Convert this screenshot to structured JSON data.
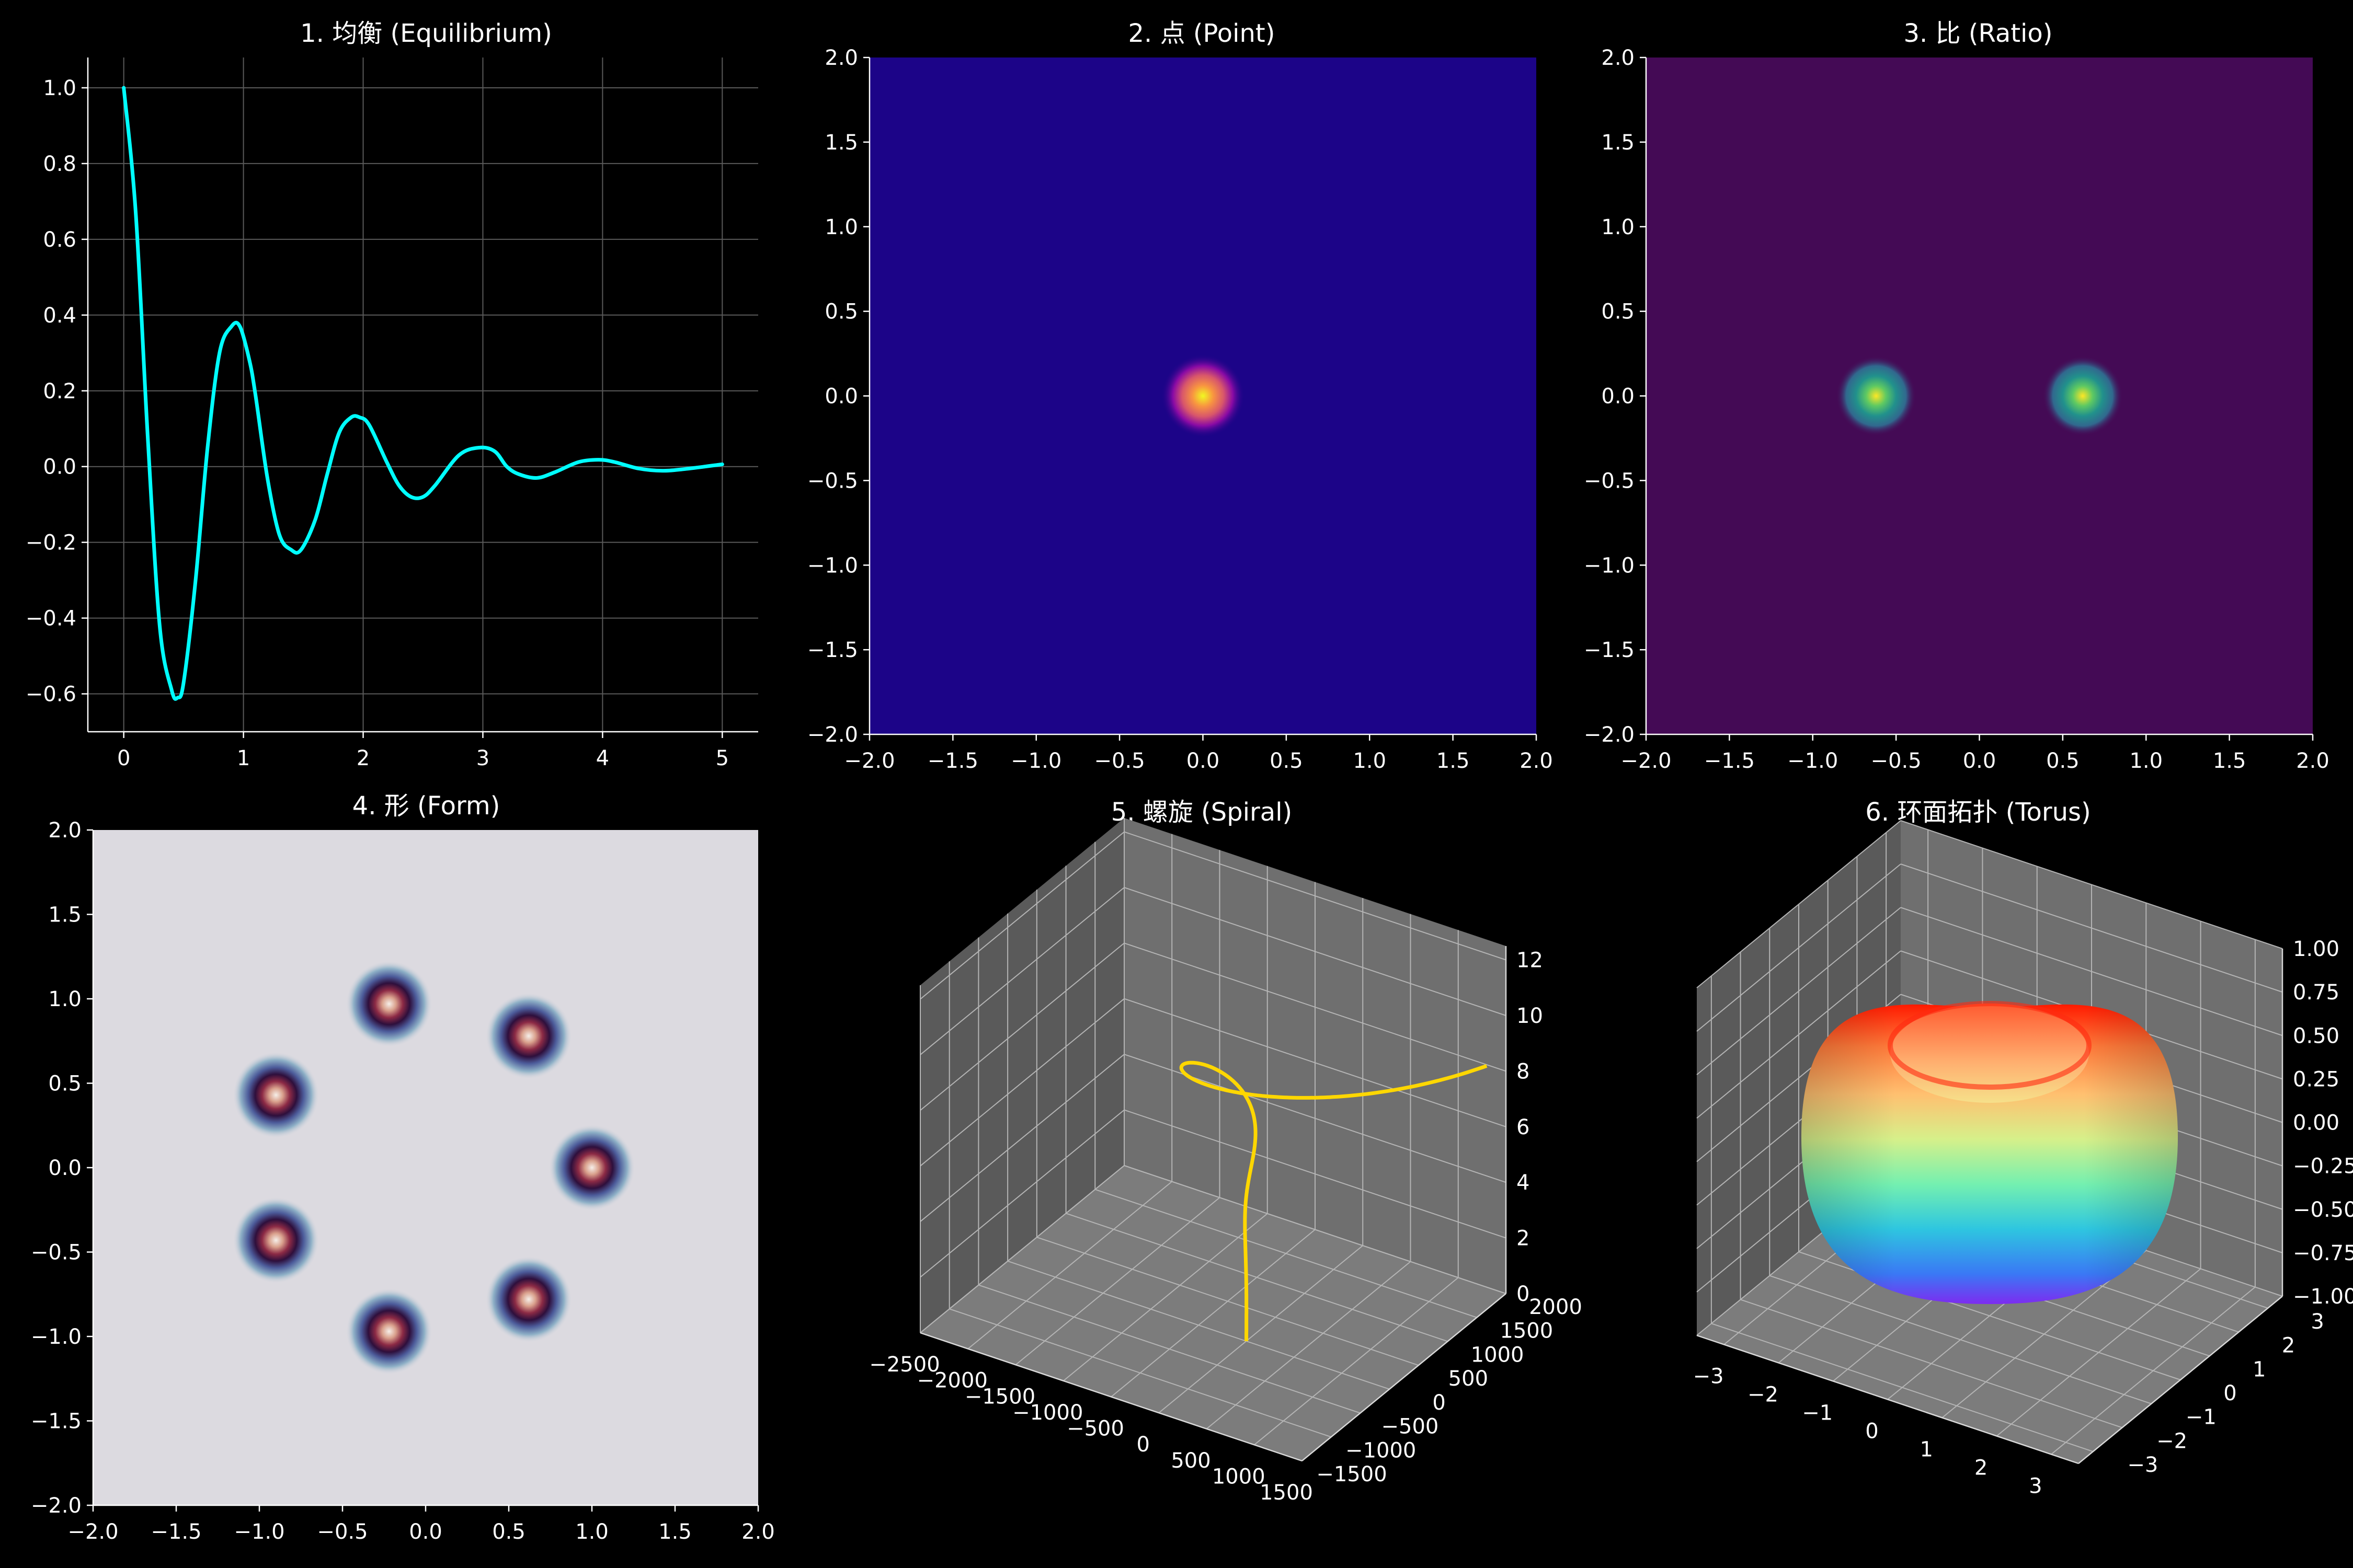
{
  "figure": {
    "background": "#000000"
  },
  "chart_data": [
    {
      "type": "line",
      "title": "1. 均衡 (Equilibrium)",
      "xlim": [
        -0.3,
        5.3
      ],
      "ylim": [
        -0.7,
        1.08
      ],
      "xticks": [
        "0",
        "1",
        "2",
        "3",
        "4",
        "5"
      ],
      "yticks": [
        "−0.6",
        "−0.4",
        "−0.2",
        "0.0",
        "0.2",
        "0.4",
        "0.6",
        "0.8",
        "1.0"
      ],
      "grid": true,
      "line_color": "#00ffff",
      "series": [
        {
          "x": [
            0,
            0.1,
            0.2,
            0.3,
            0.4,
            0.45,
            0.5,
            0.6,
            0.7,
            0.8,
            0.9,
            0.97,
            1.05,
            1.1,
            1.2,
            1.3,
            1.4,
            1.48,
            1.6,
            1.7,
            1.8,
            1.9,
            1.97,
            2.05,
            2.2,
            2.3,
            2.4,
            2.5,
            2.6,
            2.8,
            2.97,
            3.1,
            3.2,
            3.3,
            3.45,
            3.6,
            3.8,
            3.97,
            4.1,
            4.3,
            4.5,
            4.7,
            5.0
          ],
          "y": [
            1.0,
            0.67,
            0.08,
            -0.42,
            -0.59,
            -0.61,
            -0.57,
            -0.3,
            0.05,
            0.3,
            0.37,
            0.37,
            0.28,
            0.19,
            -0.03,
            -0.18,
            -0.22,
            -0.22,
            -0.14,
            -0.02,
            0.09,
            0.13,
            0.13,
            0.11,
            0.01,
            -0.05,
            -0.08,
            -0.08,
            -0.05,
            0.03,
            0.05,
            0.04,
            0.0,
            -0.02,
            -0.03,
            -0.015,
            0.012,
            0.018,
            0.012,
            -0.005,
            -0.011,
            -0.006,
            0.006
          ]
        }
      ]
    },
    {
      "type": "heatmap",
      "title": "2. 点 (Point)",
      "xlim": [
        -2,
        2
      ],
      "ylim": [
        -2,
        2
      ],
      "xticks": [
        "−2.0",
        "−1.5",
        "−1.0",
        "−0.5",
        "0.0",
        "0.5",
        "1.0",
        "1.5",
        "2.0"
      ],
      "yticks": [
        "−2.0",
        "−1.5",
        "−1.0",
        "−0.5",
        "0.0",
        "0.5",
        "1.0",
        "1.5",
        "2.0"
      ],
      "background_color": "#1c0488",
      "peaks": [
        {
          "x": 0,
          "y": 0,
          "sigma": 0.12
        }
      ],
      "colors": [
        "#1c0488",
        "#8a0aa5",
        "#d8566b",
        "#f89540",
        "#f0f921"
      ]
    },
    {
      "type": "heatmap",
      "title": "3. 比 (Ratio)",
      "xlim": [
        -2,
        2
      ],
      "ylim": [
        -2,
        2
      ],
      "xticks": [
        "−2.0",
        "−1.5",
        "−1.0",
        "−0.5",
        "0.0",
        "0.5",
        "1.0",
        "1.5",
        "2.0"
      ],
      "yticks": [
        "−2.0",
        "−1.5",
        "−1.0",
        "−0.5",
        "0.0",
        "0.5",
        "1.0",
        "1.5",
        "2.0"
      ],
      "background_color": "#440a55",
      "peaks": [
        {
          "x": -0.62,
          "y": 0,
          "sigma": 0.12
        },
        {
          "x": 0.62,
          "y": 0,
          "sigma": 0.12
        }
      ],
      "colors": [
        "#440a55",
        "#31688e",
        "#21918c",
        "#5ec962",
        "#fde725"
      ]
    },
    {
      "type": "heatmap",
      "title": "4. 形 (Form)",
      "xlim": [
        -2,
        2
      ],
      "ylim": [
        -2,
        2
      ],
      "xticks": [
        "−2.0",
        "−1.5",
        "−1.0",
        "−0.5",
        "0.0",
        "0.5",
        "1.0",
        "1.5",
        "2.0"
      ],
      "yticks": [
        "−2.0",
        "−1.5",
        "−1.0",
        "−0.5",
        "0.0",
        "0.5",
        "1.0",
        "1.5",
        "2.0"
      ],
      "background_color": "#dcdae0",
      "peaks": [
        {
          "x": 1.0,
          "y": 0.0
        },
        {
          "x": 0.62,
          "y": 0.78
        },
        {
          "x": -0.22,
          "y": 0.97
        },
        {
          "x": -0.9,
          "y": 0.43
        },
        {
          "x": -0.9,
          "y": -0.43
        },
        {
          "x": -0.22,
          "y": -0.97
        },
        {
          "x": 0.62,
          "y": -0.78
        }
      ],
      "colors": [
        "#a9c4d0",
        "#5a6fa3",
        "#2f0f3f",
        "#7a1f3d",
        "#c98a7a",
        "#f2e9e4"
      ]
    },
    {
      "type": "line",
      "title": "5. 螺旋 (Spiral)",
      "projection": "3d",
      "line_color": "#ffd700",
      "xlim": [
        -2500,
        1500
      ],
      "ylim": [
        -1500,
        2000
      ],
      "zlim": [
        0,
        12.5
      ],
      "xticks": [
        "−2500",
        "−2000",
        "−1500",
        "−1000",
        "−500",
        "0",
        "500",
        "1000",
        "1500"
      ],
      "yticks": [
        "−1500",
        "−1000",
        "−500",
        "0",
        "500",
        "1000",
        "1500",
        "2000"
      ],
      "zticks": [
        "0",
        "2",
        "4",
        "6",
        "8",
        "10",
        "12"
      ],
      "series": [
        {
          "parametric": "x = e^(0.62 t) cos t, y = e^(0.62 t) sin t, z = t",
          "t_range": [
            0,
            12.6
          ]
        }
      ]
    },
    {
      "type": "surface",
      "title": "6. 环面拓扑 (Torus)",
      "projection": "3d",
      "colormap": "rainbow",
      "xlim": [
        -3.5,
        3.5
      ],
      "ylim": [
        -3.5,
        3.5
      ],
      "zlim": [
        -1,
        1
      ],
      "xticks": [
        "−3",
        "−2",
        "−1",
        "0",
        "1",
        "2",
        "3"
      ],
      "yticks": [
        "−3",
        "−2",
        "−1",
        "0",
        "1",
        "2",
        "3"
      ],
      "zticks": [
        "−1.00",
        "−0.75",
        "−0.50",
        "−0.25",
        "0.00",
        "0.25",
        "0.50",
        "0.75",
        "1.00"
      ],
      "surface": {
        "R": 2,
        "r": 1
      }
    }
  ]
}
